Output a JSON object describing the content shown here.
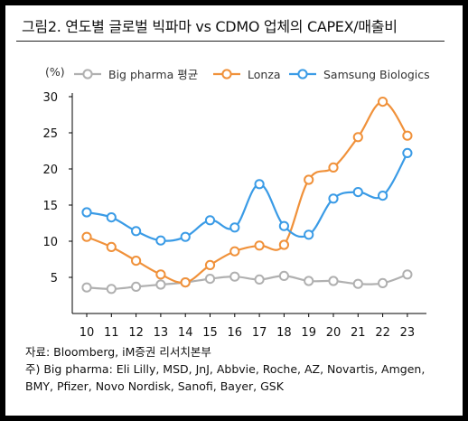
{
  "title": "그림2.  연도별 글로벌 빅파마 vs CDMO 업체의 CAPEX/매출비",
  "chart_data": {
    "type": "line",
    "y_unit_label": "(%)",
    "x": [
      "10",
      "11",
      "12",
      "13",
      "14",
      "15",
      "16",
      "17",
      "18",
      "19",
      "20",
      "21",
      "22",
      "23"
    ],
    "ylim": [
      0,
      30
    ],
    "yticks": [
      5,
      10,
      15,
      20,
      25,
      30
    ],
    "grid": false,
    "legend_position": "top",
    "series": [
      {
        "name": "Big pharma 평균",
        "color": "#b0b0b0",
        "values": [
          3.6,
          3.4,
          3.7,
          4.0,
          4.3,
          4.8,
          5.1,
          4.7,
          5.2,
          4.5,
          4.5,
          4.1,
          4.2,
          5.4
        ]
      },
      {
        "name": "Lonza",
        "color": "#f0913a",
        "values": [
          10.6,
          9.2,
          7.3,
          5.4,
          4.3,
          6.7,
          8.6,
          9.4,
          9.5,
          18.5,
          20.2,
          24.4,
          29.3,
          24.6
        ]
      },
      {
        "name": "Samsung Biologics",
        "color": "#3a9be6",
        "values": [
          14.0,
          13.3,
          11.4,
          10.1,
          10.6,
          12.9,
          11.9,
          17.9,
          12.1,
          10.9,
          15.9,
          16.8,
          16.3,
          22.2
        ]
      }
    ]
  },
  "notes": {
    "source": "자료: Bloomberg, iM증권 리서치본부",
    "footnote_line1": "주) Big pharma: Eli Lilly, MSD, JnJ, Abbvie, Roche, AZ, Novartis, Amgen,",
    "footnote_line2": "BMY, Pfizer, Novo Nordisk, Sanofi, Bayer, GSK"
  }
}
